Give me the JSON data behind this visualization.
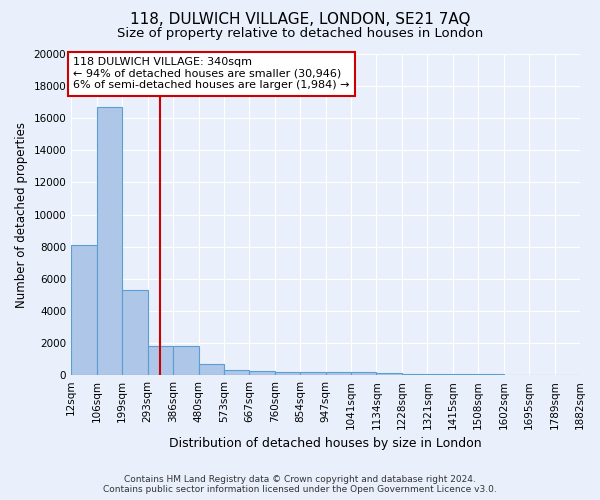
{
  "title": "118, DULWICH VILLAGE, LONDON, SE21 7AQ",
  "subtitle": "Size of property relative to detached houses in London",
  "xlabel": "Distribution of detached houses by size in London",
  "ylabel": "Number of detached properties",
  "footer": "Contains HM Land Registry data © Crown copyright and database right 2024.\nContains public sector information licensed under the Open Government Licence v3.0.",
  "bin_labels": [
    "12sqm",
    "106sqm",
    "199sqm",
    "293sqm",
    "386sqm",
    "480sqm",
    "573sqm",
    "667sqm",
    "760sqm",
    "854sqm",
    "947sqm",
    "1041sqm",
    "1134sqm",
    "1228sqm",
    "1321sqm",
    "1415sqm",
    "1508sqm",
    "1602sqm",
    "1695sqm",
    "1789sqm",
    "1882sqm"
  ],
  "bin_edges": [
    12,
    106,
    199,
    293,
    386,
    480,
    573,
    667,
    760,
    854,
    947,
    1041,
    1134,
    1228,
    1321,
    1415,
    1508,
    1602,
    1695,
    1789,
    1882
  ],
  "bar_heights": [
    8100,
    16700,
    5300,
    1800,
    1800,
    700,
    300,
    250,
    220,
    180,
    170,
    160,
    100,
    80,
    60,
    50,
    40,
    30,
    20,
    15
  ],
  "bar_color": "#aec6e8",
  "bar_edge_color": "#5a9fd4",
  "bar_edge_width": 0.8,
  "vline_x": 340,
  "vline_color": "#cc0000",
  "annotation_text": "118 DULWICH VILLAGE: 340sqm\n← 94% of detached houses are smaller (30,946)\n6% of semi-detached houses are larger (1,984) →",
  "annotation_box_color": "#ffffff",
  "annotation_box_edge_color": "#cc0000",
  "ylim": [
    0,
    20000
  ],
  "background_color": "#eaf0fb",
  "plot_bg_color": "#eaf0fb",
  "grid_color": "#ffffff",
  "title_fontsize": 11,
  "subtitle_fontsize": 9.5,
  "ylabel_fontsize": 8.5,
  "xlabel_fontsize": 9,
  "tick_fontsize": 7.5,
  "annotation_fontsize": 8,
  "footer_fontsize": 6.5
}
